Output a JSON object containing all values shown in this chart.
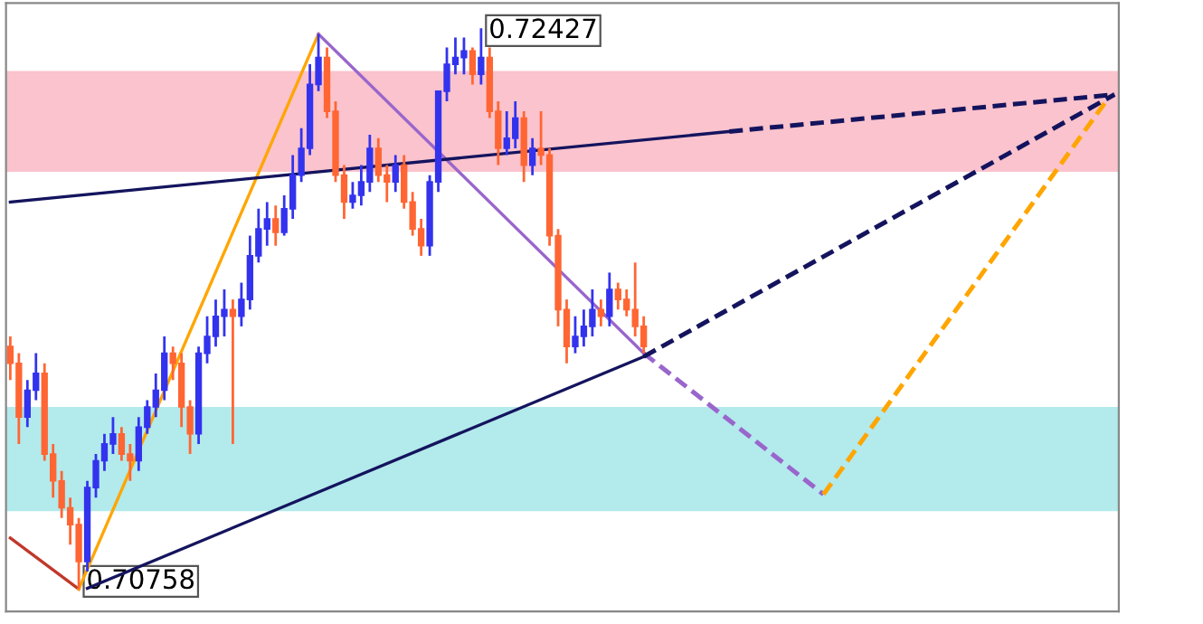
{
  "chart_data": {
    "type": "candlestick",
    "categories": [
      null,
      null,
      null,
      null,
      null,
      null,
      null,
      null,
      null,
      null,
      null,
      null,
      null,
      null,
      null,
      null,
      null,
      null,
      null,
      null,
      null,
      null,
      null,
      null,
      null,
      null,
      null,
      null,
      null,
      null,
      null,
      null,
      null,
      null,
      null,
      null,
      null,
      null,
      null,
      null,
      null,
      null,
      null,
      null,
      null,
      null,
      null,
      null,
      null,
      null,
      null,
      null,
      null,
      null,
      null,
      null,
      null,
      null,
      null,
      null,
      null,
      null,
      null,
      null,
      null,
      null,
      null,
      null,
      null,
      null,
      null,
      null,
      null,
      null,
      null,
      null,
      null,
      null,
      null,
      null,
      null,
      null,
      null,
      null,
      null,
      null,
      null,
      null,
      null,
      null,
      null,
      null,
      null,
      null,
      null,
      null,
      null,
      null,
      null,
      null,
      null,
      null,
      null,
      null,
      null,
      null,
      null,
      null,
      null,
      null,
      null,
      null,
      null,
      null,
      null,
      null,
      null,
      null,
      null,
      null,
      null,
      null,
      null,
      null,
      null,
      null,
      null,
      null,
      null,
      null
    ],
    "ohlc": [
      [
        0.7148,
        0.7151,
        0.7138,
        0.7143
      ],
      [
        0.7143,
        0.7146,
        0.7119,
        0.7127
      ],
      [
        0.7127,
        0.7138,
        0.7124,
        0.7135
      ],
      [
        0.7135,
        0.7146,
        0.7132,
        0.714
      ],
      [
        0.714,
        0.7143,
        0.7114,
        0.7116
      ],
      [
        0.7116,
        0.7119,
        0.7103,
        0.7108
      ],
      [
        0.7108,
        0.7111,
        0.7097,
        0.71
      ],
      [
        0.71,
        0.7103,
        0.7089,
        0.7095
      ],
      [
        0.7095,
        0.7097,
        0.70758,
        0.7084
      ],
      [
        0.7084,
        0.7108,
        0.7081,
        0.7106
      ],
      [
        0.7106,
        0.7116,
        0.7103,
        0.7114
      ],
      [
        0.7114,
        0.7122,
        0.7111,
        0.7119
      ],
      [
        0.7119,
        0.7127,
        0.7116,
        0.7122
      ],
      [
        0.7122,
        0.7124,
        0.7114,
        0.7116
      ],
      [
        0.7116,
        0.7119,
        0.7108,
        0.7114
      ],
      [
        0.7114,
        0.7127,
        0.7111,
        0.7124
      ],
      [
        0.7124,
        0.7132,
        0.7122,
        0.713
      ],
      [
        0.713,
        0.714,
        0.7127,
        0.7135
      ],
      [
        0.7135,
        0.7151,
        0.7132,
        0.7146
      ],
      [
        0.7146,
        0.7148,
        0.7138,
        0.7143
      ],
      [
        0.7143,
        0.7146,
        0.7124,
        0.713
      ],
      [
        0.713,
        0.7132,
        0.7116,
        0.7122
      ],
      [
        0.7122,
        0.7148,
        0.7119,
        0.7146
      ],
      [
        0.7146,
        0.7157,
        0.7143,
        0.7151
      ],
      [
        0.7151,
        0.7162,
        0.7148,
        0.7157
      ],
      [
        0.7157,
        0.7165,
        0.7151,
        0.7159
      ],
      [
        0.7159,
        0.7162,
        0.7119,
        0.7157
      ],
      [
        0.7157,
        0.7167,
        0.7154,
        0.7162
      ],
      [
        0.7162,
        0.7181,
        0.7159,
        0.7175
      ],
      [
        0.7175,
        0.7189,
        0.7173,
        0.7183
      ],
      [
        0.7183,
        0.7191,
        0.7178,
        0.7186
      ],
      [
        0.7186,
        0.719,
        0.7178,
        0.7182
      ],
      [
        0.7182,
        0.7193,
        0.7181,
        0.7189
      ],
      [
        0.7189,
        0.7205,
        0.7186,
        0.7199
      ],
      [
        0.7199,
        0.7213,
        0.7197,
        0.7207
      ],
      [
        0.7207,
        0.7232,
        0.7205,
        0.7226
      ],
      [
        0.7226,
        0.7241,
        0.7224,
        0.7234
      ],
      [
        0.7234,
        0.7237,
        0.7216,
        0.7218
      ],
      [
        0.7218,
        0.7221,
        0.7197,
        0.7199
      ],
      [
        0.7199,
        0.7202,
        0.7186,
        0.7191
      ],
      [
        0.7191,
        0.7197,
        0.7189,
        0.7193
      ],
      [
        0.7193,
        0.7202,
        0.719,
        0.7197
      ],
      [
        0.7197,
        0.7211,
        0.7194,
        0.7207
      ],
      [
        0.7207,
        0.721,
        0.7197,
        0.7199
      ],
      [
        0.7199,
        0.7202,
        0.7191,
        0.7197
      ],
      [
        0.7197,
        0.7205,
        0.7194,
        0.7202
      ],
      [
        0.7202,
        0.7205,
        0.7189,
        0.7191
      ],
      [
        0.7191,
        0.7194,
        0.7181,
        0.7183
      ],
      [
        0.7183,
        0.7186,
        0.7175,
        0.7178
      ],
      [
        0.7178,
        0.7199,
        0.7175,
        0.7197
      ],
      [
        0.7197,
        0.7224,
        0.7194,
        0.7224
      ],
      [
        0.7224,
        0.7237,
        0.7221,
        0.7232
      ],
      [
        0.7232,
        0.724,
        0.7229,
        0.7234
      ],
      [
        0.7234,
        0.724,
        0.7229,
        0.7236
      ],
      [
        0.7236,
        0.7237,
        0.7226,
        0.7229
      ],
      [
        0.7229,
        0.72427,
        0.7226,
        0.7234
      ],
      [
        0.7234,
        0.7237,
        0.7216,
        0.7218
      ],
      [
        0.7218,
        0.7221,
        0.7202,
        0.7207
      ],
      [
        0.7207,
        0.7218,
        0.7205,
        0.721
      ],
      [
        0.721,
        0.7221,
        0.7207,
        0.7216
      ],
      [
        0.7216,
        0.7218,
        0.7197,
        0.7202
      ],
      [
        0.7202,
        0.721,
        0.7199,
        0.7207
      ],
      [
        0.7207,
        0.7218,
        0.7202,
        0.7205
      ],
      [
        0.7205,
        0.7207,
        0.7178,
        0.7181
      ],
      [
        0.7181,
        0.7183,
        0.7154,
        0.7159
      ],
      [
        0.7159,
        0.7162,
        0.7143,
        0.7148
      ],
      [
        0.7148,
        0.7157,
        0.7146,
        0.7151
      ],
      [
        0.7151,
        0.7159,
        0.7148,
        0.7154
      ],
      [
        0.7154,
        0.7165,
        0.7151,
        0.7159
      ],
      [
        0.7159,
        0.7162,
        0.7154,
        0.7157
      ],
      [
        0.7157,
        0.717,
        0.7154,
        0.7165
      ],
      [
        0.7165,
        0.7167,
        0.7159,
        0.7162
      ],
      [
        0.7162,
        0.7165,
        0.7157,
        0.7159
      ],
      [
        0.7159,
        0.7173,
        0.7151,
        0.7154
      ],
      [
        0.7154,
        0.7157,
        0.7146,
        0.7148
      ],
      null,
      null,
      null,
      null,
      null,
      null,
      null,
      null,
      null,
      null,
      null,
      null,
      null,
      null,
      null,
      null,
      null,
      null,
      null,
      null,
      null,
      null,
      null,
      null,
      null,
      null,
      null,
      null,
      null,
      null,
      null,
      null,
      null,
      null,
      null,
      null,
      null,
      null,
      null,
      null,
      null,
      null,
      null,
      null,
      null,
      null,
      null,
      null,
      null,
      null,
      null,
      null,
      null,
      null,
      null
    ],
    "colors": [
      "#ff6633",
      "#ff6633",
      "#3333ee",
      "#3333ee",
      "#ff6633",
      "#ff6633",
      "#ff6633",
      "#ff6633",
      "#ff6633",
      "#3333ee",
      "#3333ee",
      "#3333ee",
      "#3333ee",
      "#ff6633",
      "#ff6633",
      "#3333ee",
      "#3333ee",
      "#3333ee",
      "#3333ee",
      "#ff6633",
      "#ff6633",
      "#ff6633",
      "#3333ee",
      "#3333ee",
      "#3333ee",
      "#3333ee",
      "#ff6633",
      "#3333ee",
      "#3333ee",
      "#3333ee",
      "#3333ee",
      "#ff6633",
      "#3333ee",
      "#3333ee",
      "#3333ee",
      "#3333ee",
      "#3333ee",
      "#ff6633",
      "#ff6633",
      "#ff6633",
      "#3333ee",
      "#3333ee",
      "#3333ee",
      "#ff6633",
      "#ff6633",
      "#3333ee",
      "#ff6633",
      "#ff6633",
      "#ff6633",
      "#3333ee",
      "#3333ee",
      "#3333ee",
      "#3333ee",
      "#3333ee",
      "#ff6633",
      "#3333ee",
      "#ff6633",
      "#ff6633",
      "#3333ee",
      "#3333ee",
      "#ff6633",
      "#3333ee",
      "#ff6633",
      "#ff6633",
      "#ff6633",
      "#ff6633",
      "#3333ee",
      "#3333ee",
      "#3333ee",
      "#ff6633",
      "#3333ee",
      "#ff6633",
      "#ff6633",
      "#ff6633",
      "#ff6633",
      null,
      null,
      null,
      null,
      null,
      null,
      null,
      null,
      null,
      null,
      null,
      null,
      null,
      null,
      null,
      null,
      null,
      null,
      null,
      null,
      null,
      null,
      null,
      null,
      null,
      null,
      null,
      null,
      null,
      null,
      null,
      null,
      null,
      null,
      null,
      null,
      null,
      null,
      null,
      null,
      null,
      null,
      null,
      null,
      null,
      null,
      null,
      null,
      null,
      null,
      null,
      null,
      null,
      null,
      null
    ],
    "series": [
      {
        "type": "line",
        "color": "#c0392b",
        "line_style": "solid",
        "values": [
          0.7091,
          null,
          null,
          null,
          null,
          null,
          null,
          null,
          0.70758,
          null,
          null,
          null,
          null,
          null,
          null,
          null,
          null,
          null,
          null,
          null,
          null,
          null,
          null,
          null,
          null,
          null,
          null,
          null,
          null,
          null,
          null,
          null,
          null,
          null,
          null,
          null,
          null,
          null,
          null,
          null,
          null,
          null,
          null,
          null,
          null,
          null,
          null,
          null,
          null,
          null,
          null,
          null,
          null,
          null,
          null,
          null,
          null,
          null,
          null,
          null,
          null,
          null,
          null,
          null,
          null,
          null,
          null,
          null,
          null,
          null,
          null,
          null,
          null,
          null,
          null,
          null,
          null,
          null,
          null,
          null,
          null,
          null,
          null,
          null,
          null,
          null,
          null,
          null,
          null,
          null,
          null,
          null,
          null,
          null,
          null,
          null,
          null,
          null,
          null,
          null,
          null,
          null,
          null,
          null,
          null,
          null,
          null,
          null,
          null,
          null,
          null,
          null,
          null,
          null,
          null,
          null,
          null,
          null,
          null,
          null,
          null,
          null,
          null,
          null,
          null,
          null,
          null,
          null,
          null,
          null
        ]
      },
      {
        "type": "line",
        "color": "#ffa500",
        "line_style": "solid",
        "values": [
          null,
          null,
          null,
          null,
          null,
          null,
          null,
          null,
          0.70758,
          null,
          null,
          null,
          null,
          null,
          null,
          null,
          null,
          null,
          null,
          null,
          null,
          null,
          null,
          null,
          null,
          null,
          null,
          null,
          null,
          null,
          null,
          null,
          null,
          null,
          null,
          null,
          0.7241,
          null,
          null,
          null,
          null,
          null,
          null,
          null,
          null,
          null,
          null,
          null,
          null,
          null,
          null,
          null,
          null,
          null,
          null,
          null,
          null,
          null,
          null,
          null,
          null,
          null,
          null,
          null,
          null,
          null,
          null,
          null,
          null,
          null,
          null,
          null,
          null,
          null,
          null,
          null,
          null,
          null,
          null,
          null,
          null,
          null,
          null,
          null,
          null,
          null,
          null,
          null,
          null,
          null,
          null,
          null,
          null,
          null,
          null,
          null,
          null,
          null,
          null,
          null,
          null,
          null,
          null,
          null,
          null,
          null,
          null,
          null,
          null,
          null,
          null,
          null,
          null,
          null,
          null,
          null,
          null,
          null,
          null,
          null,
          null,
          null,
          null,
          null,
          null,
          null,
          null,
          null,
          null,
          null
        ]
      },
      {
        "type": "line",
        "color": "#9966cc",
        "line_style": "solid",
        "values": [
          null,
          null,
          null,
          null,
          null,
          null,
          null,
          null,
          null,
          null,
          null,
          null,
          null,
          null,
          null,
          null,
          null,
          null,
          null,
          null,
          null,
          null,
          null,
          null,
          null,
          null,
          null,
          null,
          null,
          null,
          null,
          null,
          null,
          null,
          null,
          null,
          0.7241,
          null,
          null,
          null,
          null,
          null,
          null,
          null,
          null,
          null,
          null,
          null,
          null,
          null,
          null,
          null,
          null,
          null,
          null,
          null,
          null,
          null,
          null,
          null,
          null,
          null,
          null,
          null,
          null,
          null,
          null,
          null,
          null,
          null,
          null,
          null,
          null,
          null,
          0.7146,
          null,
          null,
          null,
          null,
          null,
          null,
          null,
          null,
          null,
          null,
          null,
          null,
          null,
          null,
          null,
          null,
          null,
          null,
          null,
          null,
          null,
          null,
          null,
          null,
          null,
          null,
          null,
          null,
          null,
          null,
          null,
          null,
          null,
          null,
          null,
          null,
          null,
          null,
          null,
          null,
          null,
          null,
          null,
          null,
          null,
          null,
          null,
          null,
          null,
          null,
          null,
          null,
          null,
          null,
          null
        ]
      },
      {
        "type": "line",
        "color": "#9966cc",
        "line_style": "dashed",
        "values": [
          null,
          null,
          null,
          null,
          null,
          null,
          null,
          null,
          null,
          null,
          null,
          null,
          null,
          null,
          null,
          null,
          null,
          null,
          null,
          null,
          null,
          null,
          null,
          null,
          null,
          null,
          null,
          null,
          null,
          null,
          null,
          null,
          null,
          null,
          null,
          null,
          null,
          null,
          null,
          null,
          null,
          null,
          null,
          null,
          null,
          null,
          null,
          null,
          null,
          null,
          null,
          null,
          null,
          null,
          null,
          null,
          null,
          null,
          null,
          null,
          null,
          null,
          null,
          null,
          null,
          null,
          null,
          null,
          null,
          null,
          null,
          null,
          null,
          null,
          0.7146,
          null,
          null,
          null,
          null,
          null,
          null,
          null,
          null,
          null,
          null,
          null,
          null,
          null,
          null,
          null,
          null,
          null,
          null,
          null,
          null,
          0.7104,
          null,
          null,
          null,
          null,
          null,
          null,
          null,
          null,
          null,
          null,
          null,
          null,
          null,
          null,
          null,
          null,
          null,
          null,
          null,
          null,
          null,
          null,
          null,
          null,
          null,
          null,
          null,
          null,
          null,
          null,
          null,
          null,
          null,
          null
        ]
      },
      {
        "type": "line",
        "color": "#ffa500",
        "line_style": "dashed",
        "values": [
          null,
          null,
          null,
          null,
          null,
          null,
          null,
          null,
          null,
          null,
          null,
          null,
          null,
          null,
          null,
          null,
          null,
          null,
          null,
          null,
          null,
          null,
          null,
          null,
          null,
          null,
          null,
          null,
          null,
          null,
          null,
          null,
          null,
          null,
          null,
          null,
          null,
          null,
          null,
          null,
          null,
          null,
          null,
          null,
          null,
          null,
          null,
          null,
          null,
          null,
          null,
          null,
          null,
          null,
          null,
          null,
          null,
          null,
          null,
          null,
          null,
          null,
          null,
          null,
          null,
          null,
          null,
          null,
          null,
          null,
          null,
          null,
          null,
          null,
          null,
          null,
          null,
          null,
          null,
          null,
          null,
          null,
          null,
          null,
          null,
          null,
          null,
          null,
          null,
          null,
          null,
          null,
          null,
          null,
          null,
          0.7104,
          null,
          null,
          null,
          null,
          null,
          null,
          null,
          null,
          null,
          null,
          null,
          null,
          null,
          null,
          null,
          null,
          null,
          null,
          null,
          null,
          null,
          null,
          null,
          null,
          null,
          null,
          null,
          null,
          null,
          null,
          null,
          null,
          0.7221,
          null
        ]
      },
      {
        "type": "line",
        "color": "#14145e",
        "line_style": "solid",
        "values": [
          0.7191,
          null,
          null,
          null,
          null,
          null,
          null,
          null,
          null,
          null,
          null,
          null,
          null,
          null,
          null,
          null,
          null,
          null,
          null,
          null,
          null,
          null,
          null,
          null,
          null,
          null,
          null,
          null,
          null,
          null,
          null,
          null,
          null,
          null,
          null,
          null,
          null,
          null,
          null,
          null,
          null,
          null,
          null,
          null,
          null,
          null,
          null,
          null,
          null,
          null,
          null,
          null,
          null,
          null,
          null,
          null,
          null,
          null,
          null,
          null,
          null,
          null,
          null,
          null,
          null,
          null,
          null,
          null,
          null,
          null,
          null,
          null,
          null,
          null,
          null,
          null,
          null,
          null,
          null,
          null,
          null,
          null,
          null,
          null,
          0.7212,
          null,
          null,
          null,
          null,
          null,
          null,
          null,
          null,
          null,
          null,
          null,
          null,
          null,
          null,
          null,
          null,
          null,
          null,
          null,
          null,
          null,
          null,
          null,
          null,
          null,
          null,
          null,
          null,
          null,
          null,
          null,
          null,
          null,
          null,
          null,
          null,
          null,
          null,
          null,
          null,
          null,
          null,
          null,
          null,
          null
        ]
      },
      {
        "type": "line",
        "color": "#14145e",
        "line_style": "dashed",
        "values": [
          null,
          null,
          null,
          null,
          null,
          null,
          null,
          null,
          null,
          null,
          null,
          null,
          null,
          null,
          null,
          null,
          null,
          null,
          null,
          null,
          null,
          null,
          null,
          null,
          null,
          null,
          null,
          null,
          null,
          null,
          null,
          null,
          null,
          null,
          null,
          null,
          null,
          null,
          null,
          null,
          null,
          null,
          null,
          null,
          null,
          null,
          null,
          null,
          null,
          null,
          null,
          null,
          null,
          null,
          null,
          null,
          null,
          null,
          null,
          null,
          null,
          null,
          null,
          null,
          null,
          null,
          null,
          null,
          null,
          null,
          null,
          null,
          null,
          null,
          null,
          null,
          null,
          null,
          null,
          null,
          null,
          null,
          null,
          null,
          0.7212,
          null,
          null,
          null,
          null,
          null,
          null,
          null,
          null,
          null,
          null,
          null,
          null,
          null,
          null,
          null,
          null,
          null,
          null,
          null,
          null,
          null,
          null,
          null,
          null,
          null,
          null,
          null,
          null,
          null,
          null,
          null,
          null,
          null,
          null,
          null,
          null,
          null,
          null,
          null,
          null,
          null,
          null,
          null,
          null,
          0.7223
        ]
      },
      {
        "type": "line",
        "color": "#14145e",
        "line_style": "solid",
        "values": [
          null,
          null,
          null,
          null,
          null,
          null,
          null,
          null,
          null,
          0.7076,
          null,
          null,
          null,
          null,
          null,
          null,
          null,
          null,
          null,
          null,
          null,
          null,
          null,
          null,
          null,
          null,
          null,
          null,
          null,
          null,
          null,
          null,
          null,
          null,
          null,
          null,
          null,
          null,
          null,
          null,
          null,
          null,
          null,
          null,
          null,
          null,
          null,
          null,
          null,
          null,
          null,
          null,
          null,
          null,
          null,
          null,
          null,
          null,
          null,
          null,
          null,
          null,
          null,
          null,
          null,
          null,
          null,
          null,
          null,
          null,
          null,
          null,
          null,
          null,
          0.7145,
          null,
          null,
          null,
          null,
          null,
          null,
          null,
          null,
          null,
          null,
          null,
          null,
          null,
          null,
          null,
          null,
          null,
          null,
          null,
          null,
          null,
          null,
          null,
          null,
          null,
          null,
          null,
          null,
          null,
          null,
          null,
          null,
          null,
          null,
          null,
          null,
          null,
          null,
          null,
          null,
          null,
          null,
          null,
          null,
          null,
          null,
          null,
          null,
          null,
          null,
          null,
          null,
          null,
          null,
          null
        ]
      },
      {
        "type": "line",
        "color": "#14145e",
        "line_style": "dashed",
        "values": [
          null,
          null,
          null,
          null,
          null,
          null,
          null,
          null,
          null,
          null,
          null,
          null,
          null,
          null,
          null,
          null,
          null,
          null,
          null,
          null,
          null,
          null,
          null,
          null,
          null,
          null,
          null,
          null,
          null,
          null,
          null,
          null,
          null,
          null,
          null,
          null,
          null,
          null,
          null,
          null,
          null,
          null,
          null,
          null,
          null,
          null,
          null,
          null,
          null,
          null,
          null,
          null,
          null,
          null,
          null,
          null,
          null,
          null,
          null,
          null,
          null,
          null,
          null,
          null,
          null,
          null,
          null,
          null,
          null,
          null,
          null,
          null,
          null,
          null,
          0.7145,
          null,
          null,
          null,
          null,
          null,
          null,
          null,
          null,
          null,
          null,
          null,
          null,
          null,
          null,
          null,
          null,
          null,
          null,
          null,
          null,
          null,
          null,
          null,
          null,
          null,
          null,
          null,
          null,
          null,
          null,
          null,
          null,
          null,
          null,
          null,
          null,
          null,
          null,
          null,
          null,
          null,
          null,
          null,
          null,
          null,
          null,
          null,
          null,
          null,
          null,
          null,
          null,
          null,
          null,
          0.7223
        ]
      }
    ],
    "bands": [
      {
        "axis": "y",
        "from": 0.72,
        "to": 0.723,
        "color": "#fac3cd"
      },
      {
        "axis": "y",
        "from": 0.7099,
        "to": 0.713,
        "color": "#b3eaec"
      }
    ],
    "annotations": [
      "0.72427",
      "0.70758"
    ]
  }
}
